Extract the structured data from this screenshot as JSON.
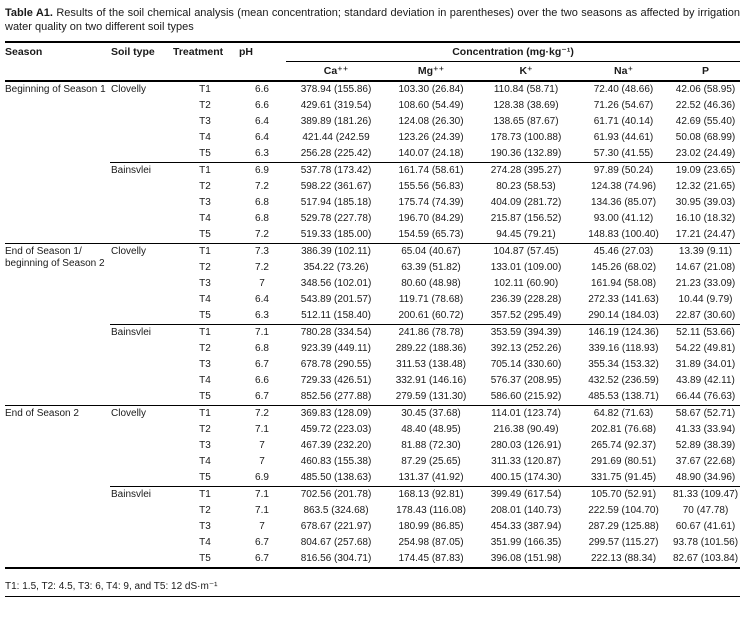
{
  "title": {
    "label": "Table A1.",
    "text": " Results of the soil chemical analysis (mean concentration; standard deviation in parentheses) over the two seasons as affected by irrigation water quality on two different soil types"
  },
  "table": {
    "headers": {
      "season": "Season",
      "soil_type": "Soil type",
      "treatment": "Treatment",
      "ph": "pH",
      "concentration_group": "Concentration (mg·kg⁻¹)",
      "ions": [
        "Ca⁺⁺",
        "Mg⁺⁺",
        "K⁺",
        "Na⁺",
        "P"
      ]
    },
    "sections": [
      {
        "season": "Beginning of Season 1",
        "groups": [
          {
            "soil_type": "Clovelly",
            "rows": [
              {
                "treatment": "T1",
                "ph": "6.6",
                "values": [
                  "378.94 (155.86)",
                  "103.30 (26.84)",
                  "110.84 (58.71)",
                  "72.40 (48.66)",
                  "42.06 (58.95)"
                ]
              },
              {
                "treatment": "T2",
                "ph": "6.6",
                "values": [
                  "429.61 (319.54)",
                  "108.60 (54.49)",
                  "128.38 (38.69)",
                  "71.26 (54.67)",
                  "22.52 (46.36)"
                ]
              },
              {
                "treatment": "T3",
                "ph": "6.4",
                "values": [
                  "389.89 (181.26)",
                  "124.08 (26.30)",
                  "138.65 (87.67)",
                  "61.71 (40.14)",
                  "42.69 (55.40)"
                ]
              },
              {
                "treatment": "T4",
                "ph": "6.4",
                "values": [
                  "421.44 (242.59",
                  "123.26 (24.39)",
                  "178.73 (100.88)",
                  "61.93 (44.61)",
                  "50.08 (68.99)"
                ]
              },
              {
                "treatment": "T5",
                "ph": "6.3",
                "values": [
                  "256.28 (225.42)",
                  "140.07 (24.18)",
                  "190.36 (132.89)",
                  "57.30 (41.55)",
                  "23.02 (24.49)"
                ]
              }
            ]
          },
          {
            "soil_type": "Bainsvlei",
            "rows": [
              {
                "treatment": "T1",
                "ph": "6.9",
                "values": [
                  "537.78 (173.42)",
                  "161.74 (58.61)",
                  "274.28 (395.27)",
                  "97.89 (50.24)",
                  "19.09 (23.65)"
                ]
              },
              {
                "treatment": "T2",
                "ph": "7.2",
                "values": [
                  "598.22 (361.67)",
                  "155.56 (56.83)",
                  "80.23 (58.53)",
                  "124.38 (74.96)",
                  "12.32 (21.65)"
                ]
              },
              {
                "treatment": "T3",
                "ph": "6.8",
                "values": [
                  "517.94 (185.18)",
                  "175.74 (74.39)",
                  "404.09 (281.72)",
                  "134.36 (85.07)",
                  "30.95 (39.03)"
                ]
              },
              {
                "treatment": "T4",
                "ph": "6.8",
                "values": [
                  "529.78 (227.78)",
                  "196.70 (84.29)",
                  "215.87 (156.52)",
                  "93.00 (41.12)",
                  "16.10 (18.32)"
                ]
              },
              {
                "treatment": "T5",
                "ph": "7.2",
                "values": [
                  "519.33 (185.00)",
                  "154.59 (65.73)",
                  "94.45 (79.21)",
                  "148.83 (100.40)",
                  "17.21 (24.47)"
                ]
              }
            ]
          }
        ]
      },
      {
        "season": "End of Season 1/ beginning of Season 2",
        "groups": [
          {
            "soil_type": "Clovelly",
            "rows": [
              {
                "treatment": "T1",
                "ph": "7.3",
                "values": [
                  "386.39 (102.11)",
                  "65.04 (40.67)",
                  "104.87 (57.45)",
                  "45.46 (27.03)",
                  "13.39 (9.11)"
                ]
              },
              {
                "treatment": "T2",
                "ph": "7.2",
                "values": [
                  "354.22 (73.26)",
                  "63.39 (51.82)",
                  "133.01 (109.00)",
                  "145.26 (68.02)",
                  "14.67 (21.08)"
                ]
              },
              {
                "treatment": "T3",
                "ph": "7",
                "values": [
                  "348.56 (102.01)",
                  "80.60 (48.98)",
                  "102.11 (60.90)",
                  "161.94 (58.08)",
                  "21.23 (33.09)"
                ]
              },
              {
                "treatment": "T4",
                "ph": "6.4",
                "values": [
                  "543.89 (201.57)",
                  "119.71 (78.68)",
                  "236.39 (228.28)",
                  "272.33 (141.63)",
                  "10.44 (9.79)"
                ]
              },
              {
                "treatment": "T5",
                "ph": "6.3",
                "values": [
                  "512.11 (158.40)",
                  "200.61 (60.72)",
                  "357.52 (295.49)",
                  "290.14 (184.03)",
                  "22.87 (30.60)"
                ]
              }
            ]
          },
          {
            "soil_type": "Bainsvlei",
            "rows": [
              {
                "treatment": "T1",
                "ph": "7.1",
                "values": [
                  "780.28 (334.54)",
                  "241.86 (78.78)",
                  "353.59 (394.39)",
                  "146.19 (124.36)",
                  "52.11 (53.66)"
                ]
              },
              {
                "treatment": "T2",
                "ph": "6.8",
                "values": [
                  "923.39 (449.11)",
                  "289.22 (188.36)",
                  "392.13 (252.26)",
                  "339.16 (118.93)",
                  "54.22 (49.81)"
                ]
              },
              {
                "treatment": "T3",
                "ph": "6.7",
                "values": [
                  "678.78 (290.55)",
                  "311.53 (138.48)",
                  "705.14 (330.60)",
                  "355.34 (153.32)",
                  "31.89 (34.01)"
                ]
              },
              {
                "treatment": "T4",
                "ph": "6.6",
                "values": [
                  "729.33 (426.51)",
                  "332.91 (146.16)",
                  "576.37 (208.95)",
                  "432.52 (236.59)",
                  "43.89 (42.11)"
                ]
              },
              {
                "treatment": "T5",
                "ph": "6.7",
                "values": [
                  "852.56 (277.88)",
                  "279.59 (131.30)",
                  "586.60 (215.92)",
                  "485.53 (138.71)",
                  "66.44 (76.63)"
                ]
              }
            ]
          }
        ]
      },
      {
        "season": "End of Season 2",
        "groups": [
          {
            "soil_type": "Clovelly",
            "rows": [
              {
                "treatment": "T1",
                "ph": "7.2",
                "values": [
                  "369.83 (128.09)",
                  "30.45 (37.68)",
                  "114.01 (123.74)",
                  "64.82 (71.63)",
                  "58.67 (52.71)"
                ]
              },
              {
                "treatment": "T2",
                "ph": "7.1",
                "values": [
                  "459.72 (223.03)",
                  "48.40 (48.95)",
                  "216.38 (90.49)",
                  "202.81 (76.68)",
                  "41.33 (33.94)"
                ]
              },
              {
                "treatment": "T3",
                "ph": "7",
                "values": [
                  "467.39 (232.20)",
                  "81.88 (72.30)",
                  "280.03 (126.91)",
                  "265.74 (92.37)",
                  "52.89 (38.39)"
                ]
              },
              {
                "treatment": "T4",
                "ph": "7",
                "values": [
                  "460.83 (155.38)",
                  "87.29 (25.65)",
                  "311.33 (120.87)",
                  "291.69 (80.51)",
                  "37.67 (22.68)"
                ]
              },
              {
                "treatment": "T5",
                "ph": "6.9",
                "values": [
                  "485.50 (138.63)",
                  "131.37 (41.92)",
                  "400.15 (174.30)",
                  "331.75 (91.45)",
                  "48.90 (34.96)"
                ]
              }
            ]
          },
          {
            "soil_type": "Bainsvlei",
            "rows": [
              {
                "treatment": "T1",
                "ph": "7.1",
                "values": [
                  "702.56 (201.78)",
                  "168.13 (92.81)",
                  "399.49 (617.54)",
                  "105.70 (52.91)",
                  "81.33 (109.47)"
                ]
              },
              {
                "treatment": "T2",
                "ph": "7.1",
                "values": [
                  "863.5 (324.68)",
                  "178.43 (116.08)",
                  "208.01 (140.73)",
                  "222.59 (104.70)",
                  "70 (47.78)"
                ]
              },
              {
                "treatment": "T3",
                "ph": "7",
                "values": [
                  "678.67 (221.97)",
                  "180.99 (86.85)",
                  "454.33 (387.94)",
                  "287.29 (125.88)",
                  "60.67 (41.61)"
                ]
              },
              {
                "treatment": "T4",
                "ph": "6.7",
                "values": [
                  "804.67 (257.68)",
                  "254.98 (87.05)",
                  "351.99 (166.35)",
                  "299.57 (115.27)",
                  "93.78 (101.56)"
                ]
              },
              {
                "treatment": "T5",
                "ph": "6.7",
                "values": [
                  "816.56 (304.71)",
                  "174.45 (87.83)",
                  "396.08 (151.98)",
                  "222.13 (88.34)",
                  "82.67 (103.84)"
                ]
              }
            ]
          }
        ]
      }
    ]
  },
  "footnote": "T1: 1.5, T2: 4.5, T3: 6, T4: 9, and T5: 12 dS·m⁻¹"
}
